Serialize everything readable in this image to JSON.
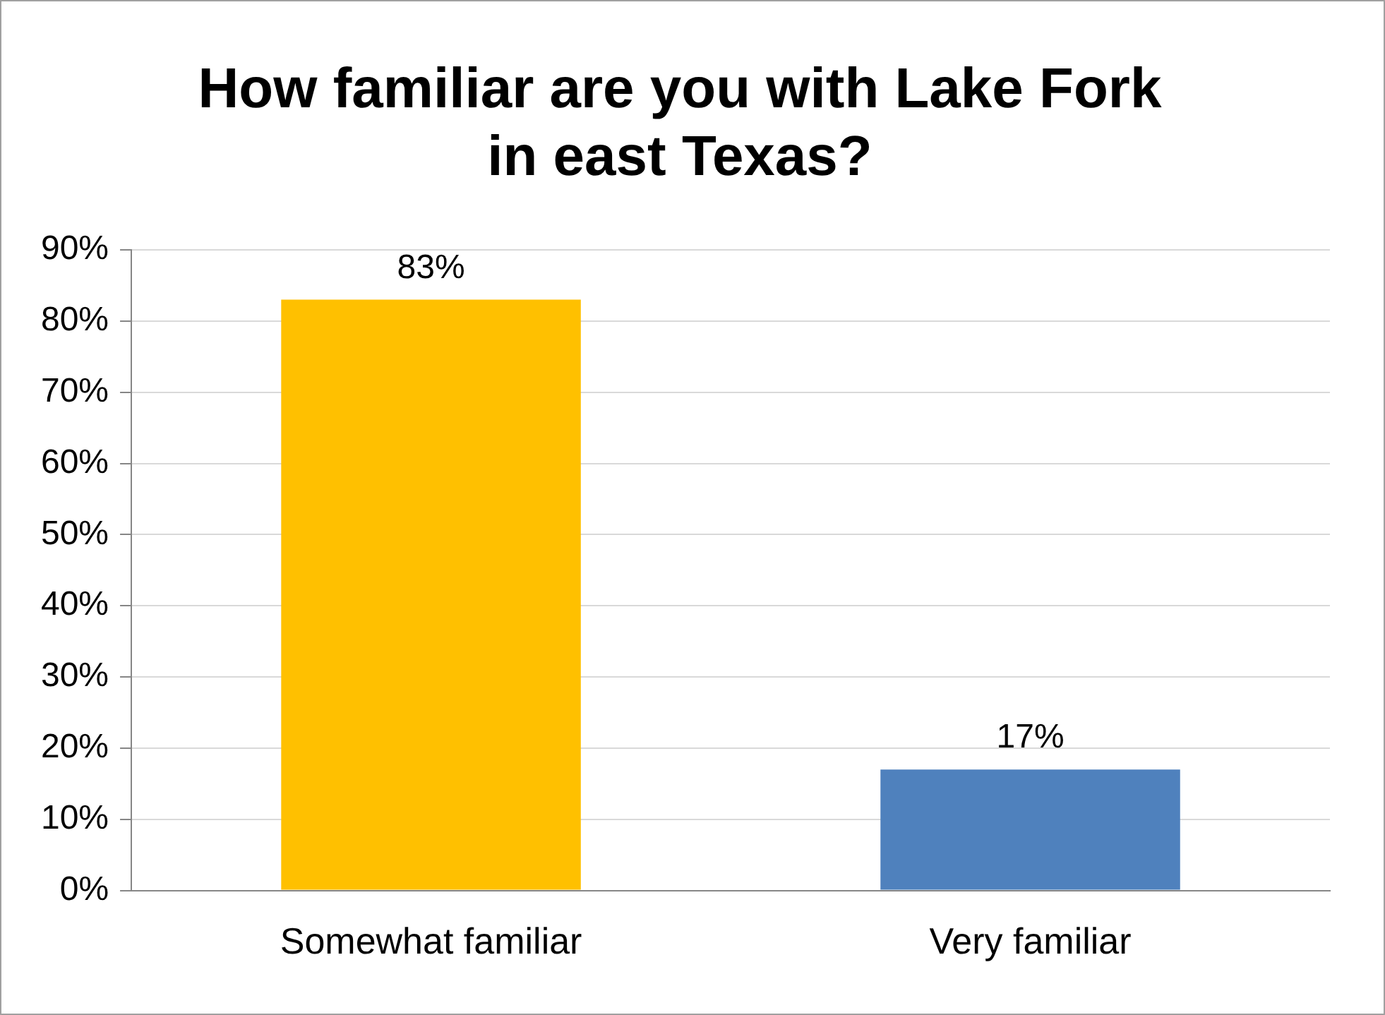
{
  "chart_data": {
    "type": "bar",
    "title": "How familiar are you with Lake Fork in east Texas?",
    "categories": [
      "Somewhat familiar",
      "Very familiar"
    ],
    "values": [
      83,
      17
    ],
    "colors": [
      "#ffc000",
      "#4f81bd"
    ],
    "value_labels": [
      "83%",
      "17%"
    ],
    "ylim": [
      0,
      90
    ],
    "yticks": [
      {
        "value": 0,
        "label": "0%"
      },
      {
        "value": 10,
        "label": "10%"
      },
      {
        "value": 20,
        "label": "20%"
      },
      {
        "value": 30,
        "label": "30%"
      },
      {
        "value": 40,
        "label": "40%"
      },
      {
        "value": 50,
        "label": "50%"
      },
      {
        "value": 60,
        "label": "60%"
      },
      {
        "value": 70,
        "label": "70%"
      },
      {
        "value": 80,
        "label": "80%"
      },
      {
        "value": 90,
        "label": "90%"
      }
    ],
    "grid": "y",
    "legend": false
  }
}
